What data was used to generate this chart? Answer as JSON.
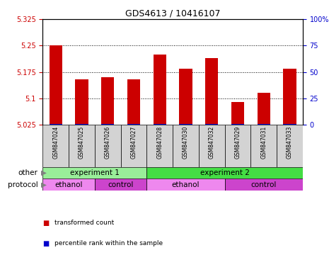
{
  "title": "GDS4613 / 10416107",
  "samples": [
    "GSM847024",
    "GSM847025",
    "GSM847026",
    "GSM847027",
    "GSM847028",
    "GSM847030",
    "GSM847032",
    "GSM847029",
    "GSM847031",
    "GSM847033"
  ],
  "red_values": [
    5.25,
    5.155,
    5.16,
    5.155,
    5.225,
    5.185,
    5.215,
    5.09,
    5.115,
    5.185
  ],
  "blue_values": [
    5.028,
    5.028,
    5.028,
    5.028,
    5.028,
    5.028,
    5.028,
    5.028,
    5.028,
    5.028
  ],
  "y_min": 5.025,
  "y_max": 5.325,
  "y_ticks": [
    5.025,
    5.1,
    5.175,
    5.25,
    5.325
  ],
  "y2_ticks": [
    0,
    25,
    50,
    75,
    100
  ],
  "y2_tick_positions": [
    5.025,
    5.1,
    5.175,
    5.25,
    5.325
  ],
  "red_color": "#cc0000",
  "blue_color": "#0000cc",
  "bar_width": 0.5,
  "sample_bg_color": "#d3d3d3",
  "groups_other": [
    {
      "label": "experiment 1",
      "start": 0,
      "end": 4,
      "color": "#99ee99"
    },
    {
      "label": "experiment 2",
      "start": 4,
      "end": 10,
      "color": "#44dd44"
    }
  ],
  "groups_protocol": [
    {
      "label": "ethanol",
      "start": 0,
      "end": 2,
      "color": "#ee88ee"
    },
    {
      "label": "control",
      "start": 2,
      "end": 4,
      "color": "#cc44cc"
    },
    {
      "label": "ethanol",
      "start": 4,
      "end": 7,
      "color": "#ee88ee"
    },
    {
      "label": "control",
      "start": 7,
      "end": 10,
      "color": "#cc44cc"
    }
  ],
  "legend_items": [
    {
      "label": "transformed count",
      "color": "#cc0000"
    },
    {
      "label": "percentile rank within the sample",
      "color": "#0000cc"
    }
  ],
  "title_fontsize": 9,
  "tick_fontsize": 7,
  "label_fontsize": 7.5,
  "sample_fontsize": 5.5,
  "group_fontsize": 7.5
}
